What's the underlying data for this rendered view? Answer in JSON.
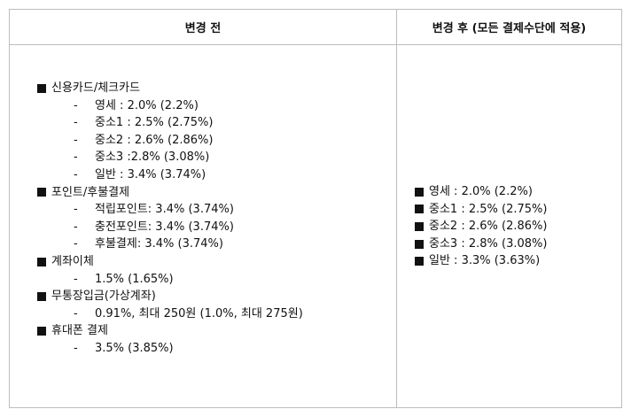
{
  "headers": {
    "before": "변경 전",
    "after": "변경 후 (모든 결제수단에 적용)"
  },
  "before": {
    "sections": [
      {
        "title": "신용카드/체크카드",
        "items": [
          "영세 : 2.0% (2.2%)",
          "중소1 : 2.5% (2.75%)",
          "중소2 : 2.6% (2.86%)",
          "중소3 :2.8% (3.08%)",
          "일반 : 3.4% (3.74%)"
        ]
      },
      {
        "title": "포인트/후불결제",
        "items": [
          "적립포인트: 3.4% (3.74%)",
          "충전포인트: 3.4% (3.74%)",
          "후불결제: 3.4% (3.74%)"
        ]
      },
      {
        "title": "계좌이체",
        "items": [
          "1.5% (1.65%)"
        ]
      },
      {
        "title": "무통장입금(가상계좌)",
        "items": [
          "0.91%, 최대 250원 (1.0%, 최대 275원)"
        ]
      },
      {
        "title": "휴대폰 결제",
        "items": [
          "3.5% (3.85%)"
        ]
      }
    ]
  },
  "after": {
    "items": [
      "영세 : 2.0% (2.2%)",
      "중소1 : 2.5% (2.75%)",
      "중소2 : 2.6% (2.86%)",
      "중소3 : 2.8% (3.08%)",
      "일반 : 3.3% (3.63%)"
    ]
  },
  "bullet_dash": "-"
}
